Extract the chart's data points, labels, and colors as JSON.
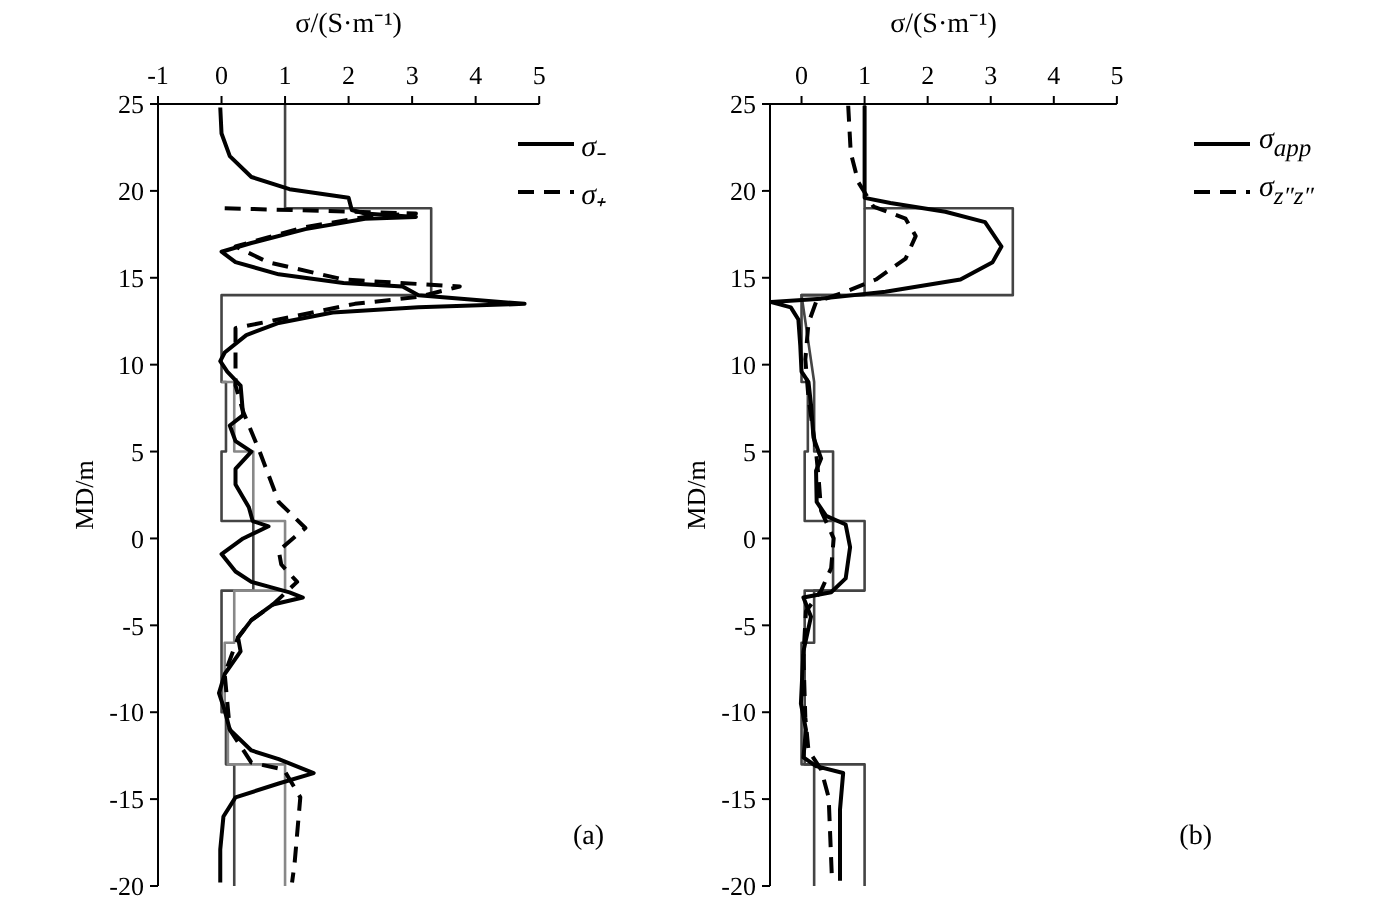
{
  "chart_data": [
    {
      "type": "line",
      "xlabel": "σ/(S·m⁻¹)",
      "ylabel": "MD/m",
      "xlim": [
        -1,
        5
      ],
      "xticks": [
        -1,
        0,
        1,
        2,
        3,
        4,
        5
      ],
      "ylim": [
        -20,
        25
      ],
      "yticks": [
        -20,
        -15,
        -10,
        -5,
        0,
        5,
        10,
        15,
        20,
        25
      ],
      "legend": "top right",
      "annotations": [
        "(a)"
      ],
      "series": [
        {
          "color": "#444444",
          "line_style": "solid",
          "x": [
            1.0,
            1.0,
            3.3,
            3.3,
            0.0,
            0.0,
            0.07,
            0.07,
            0.0,
            0.0,
            0.5,
            0.5,
            0.0,
            0.0,
            0.07,
            0.07,
            0.2,
            0.2
          ],
          "values": [
            25,
            19,
            19,
            14,
            14,
            9,
            9,
            5,
            5,
            1,
            1,
            -3,
            -3,
            -10,
            -10,
            -13,
            -13,
            -20
          ]
        },
        {
          "color": "#888888",
          "line_style": "solid",
          "x": [
            0.0,
            0.2,
            0.2,
            0.5,
            0.5,
            1.0,
            1.0,
            0.2,
            0.2,
            0.05,
            0.05,
            0.1,
            0.1,
            1.0,
            1.0
          ],
          "values": [
            9,
            9,
            5,
            5,
            1,
            1,
            -3,
            -3,
            -6,
            -6,
            -10,
            -10,
            -13,
            -13,
            -20
          ]
        },
        {
          "name": "σ₋",
          "color": "#000000",
          "line_style": "solid",
          "x": [
            -0.02,
            0.0,
            0.13,
            0.47,
            1.07,
            2.0,
            2.05,
            2.26,
            3.06,
            2.26,
            1.32,
            0.47,
            0.0,
            0.22,
            0.9,
            1.92,
            2.85,
            3.1,
            4.77,
            3.1,
            1.75,
            0.9,
            0.39,
            0.05,
            -0.02,
            0.09,
            0.3,
            0.34,
            0.13,
            0.22,
            0.47,
            0.22,
            0.22,
            0.43,
            0.49,
            0.74,
            0.34,
            0.0,
            0.22,
            0.47,
            0.77,
            1.07,
            1.28,
            0.81,
            0.47,
            0.26,
            0.3,
            0.05,
            -0.04,
            0.05,
            0.13,
            0.47,
            0.9,
            1.45,
            0.9,
            0.22,
            0.03,
            -0.02,
            -0.02
          ],
          "values": [
            24.8,
            23.3,
            22.0,
            20.8,
            20.1,
            19.6,
            18.9,
            18.7,
            18.5,
            18.4,
            17.8,
            17.0,
            16.5,
            15.9,
            15.2,
            14.7,
            14.5,
            14.0,
            13.5,
            13.3,
            13.0,
            12.4,
            11.7,
            10.7,
            10.2,
            9.6,
            8.8,
            7.1,
            6.5,
            5.6,
            5.0,
            4.0,
            3.1,
            1.8,
            1.0,
            0.7,
            0.0,
            -0.9,
            -1.9,
            -2.5,
            -2.8,
            -3.1,
            -3.4,
            -3.8,
            -4.7,
            -5.7,
            -6.5,
            -7.8,
            -8.9,
            -9.9,
            -11.0,
            -12.2,
            -12.7,
            -13.5,
            -14.1,
            -14.9,
            -16.0,
            -17.9,
            -19.8
          ]
        },
        {
          "name": "σ₊",
          "color": "#000000",
          "line_style": "dashed",
          "x": [
            0.05,
            2.1,
            3.06,
            2.26,
            1.3,
            0.22,
            0.73,
            1.92,
            3.75,
            3.1,
            2.1,
            0.22,
            0.22,
            0.34,
            0.6,
            0.9,
            1.32,
            1.19,
            0.9,
            0.94,
            1.19,
            0.81,
            0.47,
            0.26,
            0.05,
            0.13,
            0.47,
            0.98,
            1.24,
            1.15,
            1.11
          ],
          "values": [
            19.0,
            18.8,
            18.7,
            18.5,
            17.9,
            16.8,
            15.9,
            14.9,
            14.5,
            13.9,
            13.5,
            12.1,
            8.8,
            7.3,
            5.0,
            2.1,
            0.6,
            0.2,
            -0.7,
            -1.5,
            -2.5,
            -3.8,
            -4.7,
            -5.7,
            -7.8,
            -11.0,
            -12.9,
            -13.3,
            -14.9,
            -18.7,
            -19.8
          ]
        }
      ]
    },
    {
      "type": "line",
      "xlabel": "σ/(S·m⁻¹)",
      "ylabel": "MD/m",
      "xlim": [
        -0.5,
        5
      ],
      "xticks": [
        0,
        1,
        2,
        3,
        4,
        5
      ],
      "ylim": [
        -20,
        25
      ],
      "yticks": [
        -20,
        -15,
        -10,
        -5,
        0,
        5,
        10,
        15,
        20,
        25
      ],
      "legend": "top right",
      "annotations": [
        "(b)"
      ],
      "series": [
        {
          "color": "#444444",
          "line_style": "solid",
          "x": [
            1.0,
            1.0,
            3.35,
            3.35,
            0.0,
            0.0,
            0.1,
            0.1,
            0.05,
            0.05,
            0.5,
            0.5,
            0.05,
            0.05,
            0.0,
            0.0,
            0.2,
            0.2
          ],
          "values": [
            25,
            19,
            19,
            14,
            14,
            9,
            9,
            5,
            5,
            1,
            1,
            -3,
            -3,
            -6,
            -6,
            -13,
            -13,
            -20
          ]
        },
        {
          "color": "#444444",
          "line_style": "solid",
          "x": [
            1.0,
            1.0,
            0.0,
            0.2,
            0.2,
            0.5,
            0.5,
            1.0,
            1.0,
            0.2,
            0.2,
            0.05,
            0.05,
            1.0,
            1.0
          ],
          "values": [
            19,
            14,
            14,
            9,
            5,
            5,
            1,
            1,
            -3,
            -3,
            -6,
            -6,
            -13,
            -13,
            -20
          ]
        },
        {
          "name": "σ$_{app}$",
          "color": "#000000",
          "line_style": "solid",
          "x": [
            1.0,
            1.0,
            1.41,
            2.28,
            2.91,
            3.17,
            3.03,
            2.52,
            1.33,
            0.31,
            -0.48,
            -0.17,
            -0.05,
            -0.02,
            0.0,
            0.11,
            0.15,
            0.19,
            0.31,
            0.23,
            0.24,
            0.39,
            0.7,
            0.77,
            0.7,
            0.47,
            0.03,
            0.15,
            0.03,
            -0.01,
            0.07,
            0.03,
            0.23,
            0.66,
            0.61,
            0.61
          ],
          "values": [
            24.9,
            19.6,
            19.3,
            18.8,
            18.2,
            16.8,
            15.9,
            14.9,
            14.2,
            13.8,
            13.6,
            13.3,
            12.6,
            11.1,
            9.6,
            9.0,
            7.7,
            5.8,
            4.6,
            3.9,
            2.1,
            1.3,
            0.8,
            -0.5,
            -2.3,
            -3.1,
            -3.4,
            -4.5,
            -6.5,
            -9.5,
            -11.0,
            -12.6,
            -13.1,
            -13.5,
            -15.6,
            -19.7
          ]
        },
        {
          "name": "σ$_{z″z″}$",
          "color": "#000000",
          "line_style": "dashed",
          "x": [
            0.74,
            0.78,
            0.9,
            1.14,
            1.65,
            1.81,
            1.65,
            1.18,
            0.7,
            0.23,
            0.11,
            0.06,
            0.11,
            0.23,
            0.27,
            0.31,
            0.51,
            0.47,
            0.31,
            0.07,
            0.03,
            0.06,
            0.11,
            0.31,
            0.43,
            0.48
          ],
          "values": [
            24.9,
            22.2,
            20.5,
            19.1,
            18.4,
            17.4,
            16.1,
            14.9,
            14.2,
            13.6,
            12.4,
            10.3,
            8.1,
            5.0,
            3.5,
            1.6,
            0.0,
            -1.7,
            -3.0,
            -4.2,
            -6.8,
            -10.3,
            -12.2,
            -13.3,
            -14.9,
            -19.4
          ]
        }
      ]
    }
  ]
}
